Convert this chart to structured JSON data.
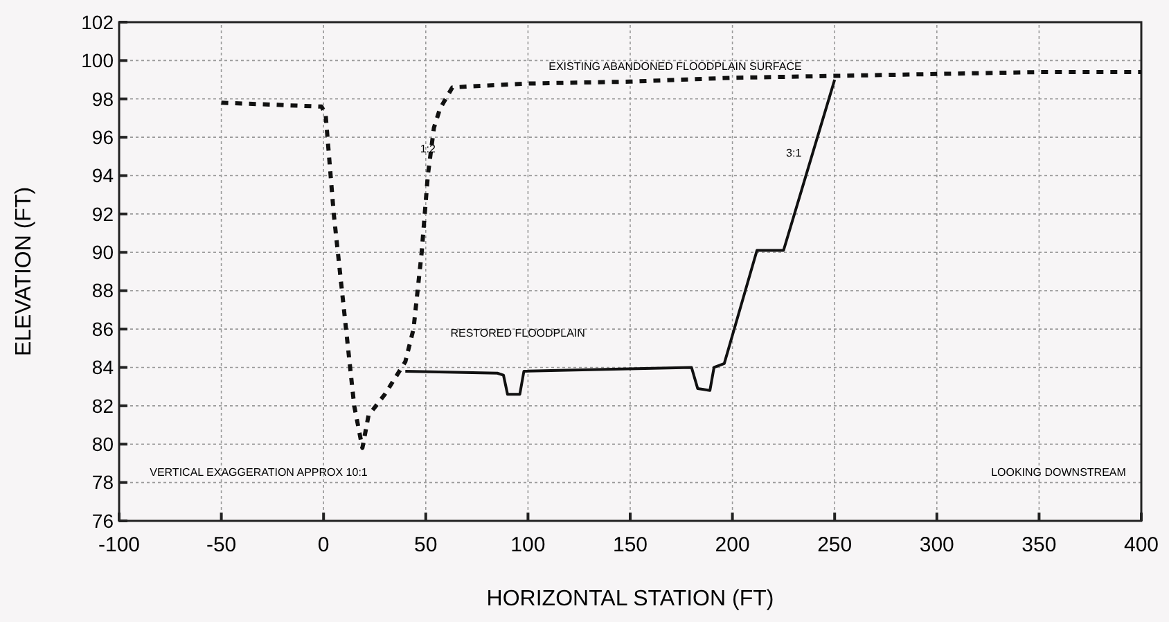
{
  "chart_data": {
    "type": "line",
    "xlabel": "HORIZONTAL STATION (FT)",
    "ylabel": "ELEVATION (FT)",
    "xlim": [
      -100,
      400
    ],
    "xticks": [
      -100,
      -50,
      0,
      50,
      100,
      150,
      200,
      250,
      300,
      350,
      400
    ],
    "ylim": [
      76,
      102
    ],
    "yticks": [
      76,
      78,
      80,
      82,
      84,
      86,
      88,
      90,
      92,
      94,
      96,
      98,
      100,
      102
    ],
    "grid": true,
    "series": [
      {
        "color": "#111111",
        "line_style": "dashed",
        "x": [
          -50,
          -1,
          1,
          5,
          10,
          15,
          19,
          22,
          30,
          40,
          44,
          48,
          51,
          54,
          57,
          63,
          100,
          150,
          200,
          250,
          300,
          350,
          400
        ],
        "values": [
          97.8,
          97.6,
          97.2,
          92,
          87,
          82,
          79.8,
          81.5,
          82.6,
          84.3,
          86,
          90,
          94,
          96.5,
          97.5,
          98.6,
          98.8,
          98.9,
          99.1,
          99.2,
          99.3,
          99.4,
          99.4
        ]
      },
      {
        "color": "#111111",
        "line_style": "solid",
        "x": [
          40,
          85,
          88,
          90,
          96,
          98,
          180,
          183,
          189,
          191,
          196,
          212,
          225,
          250
        ],
        "values": [
          83.8,
          83.7,
          83.6,
          82.6,
          82.6,
          83.8,
          84,
          82.9,
          82.8,
          84,
          84.2,
          90.1,
          90.1,
          99
        ]
      }
    ],
    "annotations": [
      {
        "text": "EXISTING ABANDONED FLOODPLAIN SURFACE",
        "x": 172,
        "y": 99.3
      },
      {
        "text": "1:2",
        "x": 51,
        "y": 95
      },
      "3:1",
      "RESTORED FLOODPLAIN",
      "VERTICAL EXAGGERATION APPROX 10:1",
      "LOOKING DOWNSTREAM"
    ]
  }
}
